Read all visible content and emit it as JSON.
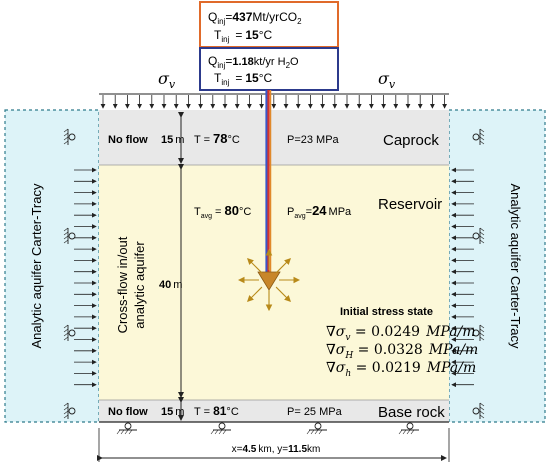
{
  "colors": {
    "aquifer_fill": "#ddf3f8",
    "reservoir_fill": "#fcf8d8",
    "band_fill": "#e8e8e8",
    "co2_border": "#e06a2a",
    "h2o_border": "#2c3a8c",
    "pipe_red": "#d5342a",
    "pipe_blue": "#3a55c8",
    "arrow_gold": "#b88a1a"
  },
  "injection_co2": {
    "q_sym": "Q",
    "q_sub": "inj",
    "q_eq": "=",
    "q_value": "437",
    "q_unit": "Mt/yrCO",
    "q_unit_sub": "2",
    "t_sym": "T",
    "t_sub": "inj",
    "t_eq": "=",
    "t_value": "15",
    "t_unit": "°C"
  },
  "injection_h2o": {
    "q_sym": "Q",
    "q_sub": "inj",
    "q_eq": "=",
    "q_value": "1.18",
    "q_unit": "kt/yr H",
    "q_unit_sub": "2",
    "q_unit_end": "O",
    "t_sym": "T",
    "t_sub": "inj",
    "t_eq": "=",
    "t_value": "15",
    "t_unit": "°C"
  },
  "sigma_label": "σ",
  "sigma_sub": "v",
  "caprock": {
    "name": "Caprock",
    "flow": "No flow",
    "thickness_value": "15",
    "thickness_unit": "m",
    "t_label": "T =",
    "t_value": "78",
    "t_unit": "°C",
    "p_label": "P=23 MPa"
  },
  "reservoir": {
    "name": "Reservoir",
    "tavg_sym": "T",
    "tavg_sub": "avg",
    "tavg_eq": "=",
    "tavg_value": "80",
    "tavg_unit": "°C",
    "pavg_sym": "P",
    "pavg_sub": "avg",
    "pavg_eq": "=",
    "pavg_value": "24",
    "pavg_unit": "MPa",
    "thickness_value": "40",
    "thickness_unit": "m",
    "crossflow_line1": "Cross-flow in/out",
    "crossflow_line2": "analytic aquifer"
  },
  "baserock": {
    "name": "Base rock",
    "flow": "No flow",
    "thickness_value": "15",
    "thickness_unit": "m",
    "t_label": "T = ",
    "t_value": "81",
    "t_unit": "°C",
    "p_label": "P= 25 MPa"
  },
  "aquifer_label": "Analytic aquifer Carter-Tracy",
  "stress": {
    "title": "Initial stress state",
    "rows": [
      {
        "sym": "∇σ",
        "sub": "v",
        "eq": " = ",
        "value": "0.0249",
        "unit": "MPa/m"
      },
      {
        "sym": "∇σ",
        "sub": "H",
        "eq": " = ",
        "value": "0.0328",
        "unit": "MPa/m"
      },
      {
        "sym": "∇σ",
        "sub": "h",
        "eq": " = ",
        "value": "0.0219",
        "unit": "MPa/m"
      }
    ]
  },
  "extent": {
    "x_prefix": "x=",
    "x_value": "4.5",
    "x_unit": "km",
    "sep": ", ",
    "y_prefix": "y=",
    "y_value": "11.5",
    "y_unit": "km"
  }
}
